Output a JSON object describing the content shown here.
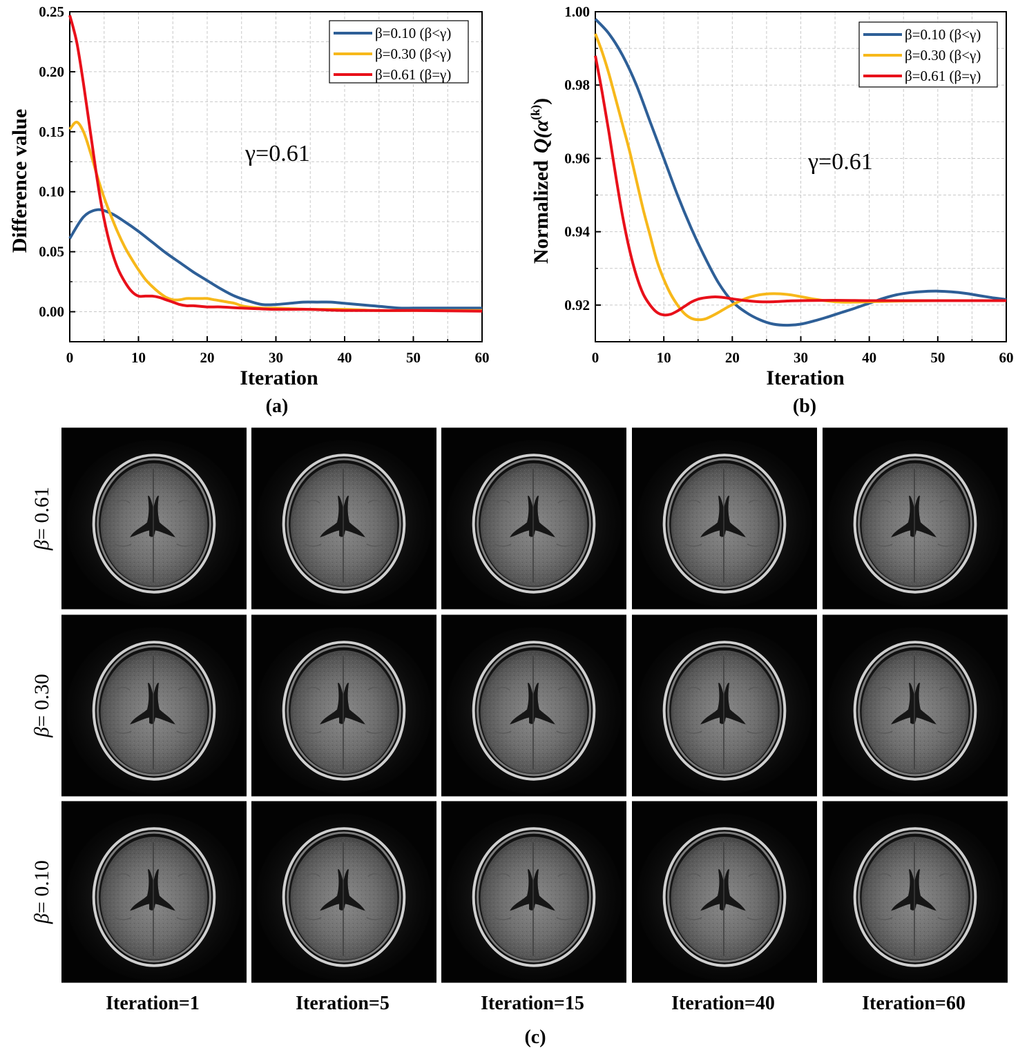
{
  "colors": {
    "beta010": "#2e5f97",
    "beta030": "#f7b81a",
    "beta061": "#e8101a"
  },
  "chart_data": [
    {
      "type": "line",
      "panel": "(a)",
      "xlabel": "Iteration",
      "ylabel": "Difference value",
      "xlim": [
        0,
        60
      ],
      "ylim": [
        -0.025,
        0.25
      ],
      "xticks": [
        0,
        10,
        20,
        30,
        40,
        50,
        60
      ],
      "yticks": [
        0.0,
        0.05,
        0.1,
        0.15,
        0.2,
        0.25
      ],
      "grid": true,
      "legend": "top-right",
      "annotation": "γ=0.61",
      "series": [
        {
          "name": "β=0.10 (β<γ)",
          "x": [
            0,
            2,
            4,
            6,
            8,
            10,
            12,
            14,
            16,
            18,
            20,
            22,
            24,
            26,
            28,
            30,
            32,
            34,
            36,
            38,
            40,
            42,
            44,
            46,
            48,
            50,
            52,
            54,
            56,
            58,
            60
          ],
          "y": [
            0.061,
            0.079,
            0.085,
            0.082,
            0.075,
            0.067,
            0.058,
            0.049,
            0.041,
            0.033,
            0.026,
            0.019,
            0.013,
            0.009,
            0.006,
            0.006,
            0.007,
            0.008,
            0.008,
            0.008,
            0.007,
            0.006,
            0.005,
            0.004,
            0.003,
            0.003,
            0.003,
            0.003,
            0.003,
            0.003,
            0.003
          ]
        },
        {
          "name": "β=0.30 (β<γ)",
          "x": [
            0,
            1,
            2,
            3,
            4,
            5,
            6,
            7,
            8,
            9,
            10,
            11,
            12,
            13,
            14,
            15,
            16,
            17,
            18,
            19,
            20,
            21,
            22,
            23,
            24,
            25,
            26,
            28,
            30,
            35,
            40,
            45,
            50,
            55,
            60
          ],
          "y": [
            0.152,
            0.158,
            0.15,
            0.133,
            0.113,
            0.095,
            0.08,
            0.066,
            0.054,
            0.044,
            0.035,
            0.027,
            0.021,
            0.016,
            0.012,
            0.01,
            0.01,
            0.011,
            0.011,
            0.011,
            0.011,
            0.01,
            0.009,
            0.008,
            0.007,
            0.005,
            0.004,
            0.003,
            0.003,
            0.002,
            0.002,
            0.001,
            0.001,
            0.001,
            0.001
          ]
        },
        {
          "name": "β=0.61 (β=γ)",
          "x": [
            0,
            1,
            2,
            3,
            4,
            5,
            6,
            7,
            8,
            9,
            10,
            11,
            12,
            13,
            14,
            15,
            16,
            17,
            18,
            20,
            22,
            25,
            30,
            35,
            40,
            50,
            60
          ],
          "y": [
            0.247,
            0.225,
            0.19,
            0.15,
            0.11,
            0.077,
            0.053,
            0.036,
            0.025,
            0.017,
            0.013,
            0.013,
            0.013,
            0.012,
            0.01,
            0.008,
            0.006,
            0.005,
            0.005,
            0.004,
            0.004,
            0.003,
            0.002,
            0.002,
            0.001,
            0.001,
            0.0005
          ]
        }
      ]
    },
    {
      "type": "line",
      "panel": "(b)",
      "xlabel": "Iteration",
      "ylabel_prefix": "Normalized",
      "ylabel_expr": "Q(α",
      "ylabel_sup": "(k)",
      "ylabel_close": ")",
      "xlim": [
        0,
        60
      ],
      "ylim": [
        0.91,
        1.0
      ],
      "xticks": [
        0,
        10,
        20,
        30,
        40,
        50,
        60
      ],
      "yticks": [
        0.92,
        0.94,
        0.96,
        0.98,
        1.0
      ],
      "grid": true,
      "legend": "top-right",
      "annotation": "γ=0.61",
      "series": [
        {
          "name": "β=0.10 (β<γ)",
          "x": [
            0,
            2,
            4,
            6,
            8,
            10,
            12,
            14,
            16,
            18,
            20,
            22,
            24,
            26,
            28,
            30,
            32,
            34,
            36,
            38,
            40,
            42,
            44,
            46,
            48,
            50,
            52,
            54,
            56,
            58,
            60
          ],
          "y": [
            0.998,
            0.994,
            0.988,
            0.98,
            0.97,
            0.96,
            0.95,
            0.941,
            0.933,
            0.926,
            0.921,
            0.918,
            0.916,
            0.9148,
            0.9145,
            0.9148,
            0.9157,
            0.9168,
            0.918,
            0.9192,
            0.9205,
            0.9218,
            0.9228,
            0.9234,
            0.9237,
            0.9238,
            0.9236,
            0.9232,
            0.9226,
            0.922,
            0.9215
          ]
        },
        {
          "name": "β=0.30 (β<γ)",
          "x": [
            0,
            1,
            2,
            3,
            4,
            5,
            6,
            7,
            8,
            9,
            10,
            11,
            12,
            13,
            14,
            15,
            16,
            17,
            18,
            19,
            20,
            22,
            24,
            26,
            28,
            30,
            32,
            34,
            36,
            38,
            40,
            45,
            50,
            55,
            60
          ],
          "y": [
            0.994,
            0.989,
            0.983,
            0.976,
            0.969,
            0.962,
            0.954,
            0.946,
            0.939,
            0.932,
            0.927,
            0.923,
            0.92,
            0.9177,
            0.9164,
            0.916,
            0.9162,
            0.917,
            0.918,
            0.9191,
            0.9201,
            0.9218,
            0.9228,
            0.9231,
            0.9229,
            0.9223,
            0.9216,
            0.9211,
            0.9208,
            0.9208,
            0.9209,
            0.9211,
            0.9212,
            0.9212,
            0.9212
          ]
        },
        {
          "name": "β=0.61 (β=γ)",
          "x": [
            0,
            1,
            2,
            3,
            4,
            5,
            6,
            7,
            8,
            9,
            10,
            11,
            12,
            13,
            14,
            15,
            16,
            17,
            18,
            19,
            20,
            22,
            24,
            26,
            28,
            30,
            35,
            40,
            45,
            50,
            55,
            60
          ],
          "y": [
            0.988,
            0.978,
            0.967,
            0.955,
            0.944,
            0.935,
            0.928,
            0.923,
            0.92,
            0.918,
            0.9173,
            0.9175,
            0.9184,
            0.9196,
            0.9208,
            0.9216,
            0.922,
            0.9222,
            0.9222,
            0.922,
            0.9217,
            0.9212,
            0.9209,
            0.9209,
            0.9211,
            0.9212,
            0.9213,
            0.9212,
            0.9212,
            0.9212,
            0.9212,
            0.9212
          ]
        }
      ]
    }
  ],
  "panel_c": {
    "label": "(c)",
    "rows": [
      "β= 0.61",
      "β= 0.30",
      "β= 0.10"
    ],
    "columns": [
      "Iteration=1",
      "Iteration=5",
      "Iteration=15",
      "Iteration=40",
      "Iteration=60"
    ]
  }
}
